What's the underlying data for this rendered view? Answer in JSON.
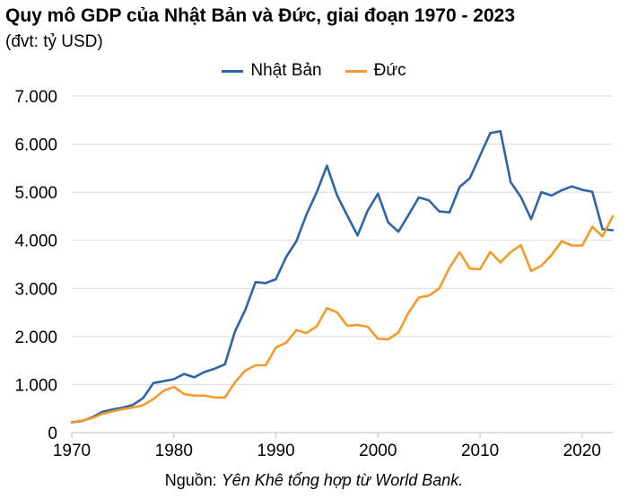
{
  "chart_data": {
    "type": "line",
    "title": "Quy mô GDP của Nhật Bản và Đức, giai đoạn 1970 - 2023",
    "subtitle": "(đvt: tỷ USD)",
    "xlim": [
      1970,
      2023
    ],
    "ylim": [
      0,
      7000
    ],
    "x_ticks": [
      1970,
      1980,
      1990,
      2000,
      2010,
      2020
    ],
    "y_ticks": [
      0,
      1000,
      2000,
      3000,
      4000,
      5000,
      6000,
      7000
    ],
    "y_tick_labels": [
      "0",
      "1.000",
      "2.000",
      "3.000",
      "4.000",
      "5.000",
      "6.000",
      "7.000"
    ],
    "grid": "horizontal",
    "legend_position": "top-center",
    "x": [
      1970,
      1971,
      1972,
      1973,
      1974,
      1975,
      1976,
      1977,
      1978,
      1979,
      1980,
      1981,
      1982,
      1983,
      1984,
      1985,
      1986,
      1987,
      1988,
      1989,
      1990,
      1991,
      1992,
      1993,
      1994,
      1995,
      1996,
      1997,
      1998,
      1999,
      2000,
      2001,
      2002,
      2003,
      2004,
      2005,
      2006,
      2007,
      2008,
      2009,
      2010,
      2011,
      2012,
      2013,
      2014,
      2015,
      2016,
      2017,
      2018,
      2019,
      2020,
      2021,
      2022,
      2023
    ],
    "series": [
      {
        "name": "Nhật Bản",
        "color": "#2e64a8",
        "values": [
          212,
          240,
          318,
          432,
          480,
          521,
          576,
          720,
          1030,
          1070,
          1110,
          1220,
          1150,
          1260,
          1330,
          1420,
          2110,
          2550,
          3130,
          3110,
          3190,
          3650,
          3980,
          4540,
          5000,
          5550,
          4930,
          4510,
          4100,
          4620,
          4970,
          4370,
          4180,
          4530,
          4890,
          4830,
          4600,
          4580,
          5110,
          5290,
          5760,
          6230,
          6270,
          5210,
          4900,
          4440,
          5000,
          4930,
          5040,
          5120,
          5050,
          5010,
          4230,
          4210
        ]
      },
      {
        "name": "Đức",
        "color": "#f39a2b",
        "values": [
          215,
          250,
          300,
          390,
          440,
          490,
          520,
          570,
          700,
          870,
          950,
          800,
          770,
          770,
          730,
          730,
          1050,
          1290,
          1400,
          1400,
          1770,
          1870,
          2130,
          2070,
          2210,
          2590,
          2500,
          2220,
          2240,
          2200,
          1950,
          1940,
          2080,
          2500,
          2810,
          2850,
          3000,
          3430,
          3750,
          3410,
          3400,
          3760,
          3540,
          3750,
          3900,
          3360,
          3470,
          3690,
          3980,
          3890,
          3890,
          4280,
          4080,
          4500
        ]
      }
    ],
    "source_prefix": "Nguồn: ",
    "source_text": "Yên Khê tổng hợp từ World Bank."
  }
}
